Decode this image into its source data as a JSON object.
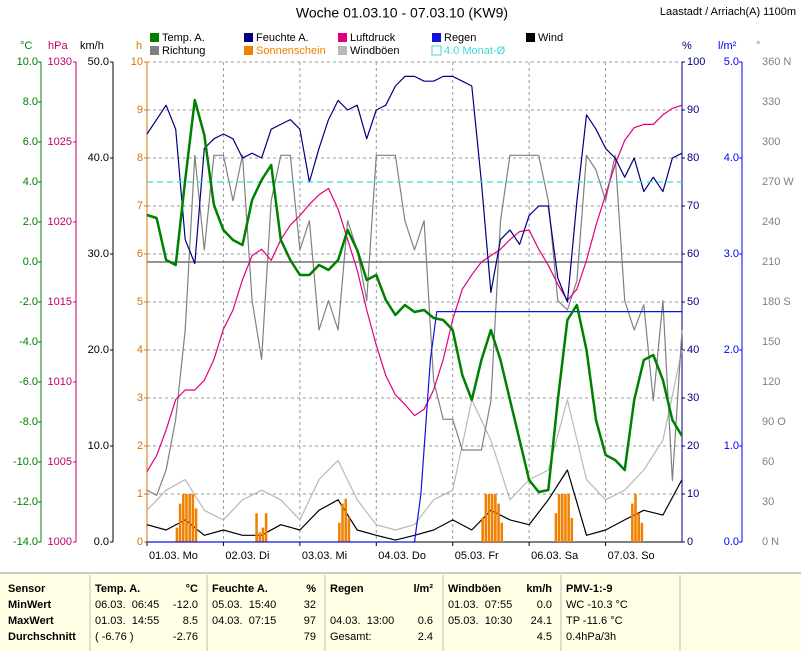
{
  "chart_data": {
    "type": "line",
    "title": "Woche 01.03.10 - 07.03.10 (KW9)",
    "subtitle": "Laastadt / Arriach(A) 1100m",
    "grid": true,
    "xlim": [
      0,
      168
    ],
    "xticks": [
      {
        "value": 0,
        "label": "01.03. Mo"
      },
      {
        "value": 24,
        "label": "02.03. Di"
      },
      {
        "value": 48,
        "label": "03.03. Mi"
      },
      {
        "value": 72,
        "label": "04.03. Do"
      },
      {
        "value": 96,
        "label": "05.03. Fr"
      },
      {
        "value": 120,
        "label": "06.03. Sa"
      },
      {
        "value": 144,
        "label": "07.03. So"
      }
    ],
    "axes": [
      {
        "label": "°C",
        "color": "#008000",
        "lim": [
          -14,
          10
        ],
        "ticks": [
          {
            "value": 10,
            "label": "10.0"
          },
          {
            "value": 8,
            "label": "8.0"
          },
          {
            "value": 6,
            "label": "6.0"
          },
          {
            "value": 4,
            "label": "4.0"
          },
          {
            "value": 2,
            "label": "2.0"
          },
          {
            "value": 0,
            "label": "0.0"
          },
          {
            "value": -2,
            "label": "-2.0"
          },
          {
            "value": -4,
            "label": "-4.0"
          },
          {
            "value": -6,
            "label": "-6.0"
          },
          {
            "value": -8,
            "label": "-8.0"
          },
          {
            "value": -10,
            "label": "-10.0"
          },
          {
            "value": -12,
            "label": "-12.0"
          },
          {
            "value": -14,
            "label": "-14.0"
          }
        ]
      },
      {
        "label": "hPa",
        "color": "#c0006a",
        "lim": [
          1000,
          1030
        ],
        "ticks": [
          1030,
          1025,
          1020,
          1015,
          1010,
          1005,
          1000
        ]
      },
      {
        "label": "km/h",
        "color": "#000000",
        "lim": [
          0,
          50
        ],
        "ticks": [
          {
            "value": 50,
            "label": "50.0"
          },
          {
            "value": 40,
            "label": "40.0"
          },
          {
            "value": 30,
            "label": "30.0"
          },
          {
            "value": 20,
            "label": "20.0"
          },
          {
            "value": 10,
            "label": "10.0"
          },
          {
            "value": 0,
            "label": "0.0"
          }
        ]
      },
      {
        "label": "h",
        "color": "#e07000",
        "lim": [
          0,
          10
        ],
        "ticks": [
          10,
          9,
          8,
          7,
          6,
          5,
          4,
          3,
          2,
          1,
          0
        ]
      },
      {
        "label": "%",
        "color": "#000080",
        "lim": [
          0,
          100
        ],
        "ticks": [
          100,
          90,
          80,
          70,
          60,
          50,
          40,
          30,
          20,
          10,
          0
        ]
      },
      {
        "label": "l/m²",
        "color": "#0000ff",
        "lim": [
          0,
          5
        ],
        "ticks": [
          {
            "value": 5,
            "label": "5.0"
          },
          {
            "value": 4,
            "label": "4.0"
          },
          {
            "value": 3,
            "label": "3.0"
          },
          {
            "value": 2,
            "label": "2.0"
          },
          {
            "value": 1,
            "label": "1.0"
          },
          {
            "value": 0,
            "label": "0.0"
          }
        ]
      },
      {
        "label": "°",
        "color": "#808080",
        "lim": [
          0,
          360
        ],
        "ticks": [
          {
            "value": 360,
            "label": "360 N"
          },
          330,
          300,
          {
            "value": 270,
            "label": "270 W"
          },
          240,
          210,
          {
            "value": 180,
            "label": "180 S"
          },
          150,
          120,
          {
            "value": 90,
            "label": "90 O"
          },
          60,
          30,
          {
            "value": 0,
            "label": "0 N"
          }
        ]
      }
    ],
    "series": [
      {
        "name": "Temp. A.",
        "color": "#008000",
        "type": "line",
        "axis": 0,
        "x": [
          0,
          3,
          6,
          9,
          12,
          15,
          18,
          21,
          24,
          27,
          30,
          33,
          36,
          39,
          42,
          45,
          48,
          51,
          54,
          57,
          60,
          63,
          66,
          69,
          72,
          75,
          78,
          81,
          84,
          87,
          90,
          93,
          96,
          99,
          102,
          105,
          108,
          111,
          114,
          117,
          120,
          123,
          126,
          129,
          132,
          135,
          138,
          141,
          144,
          147,
          150,
          153,
          156,
          159,
          162,
          165,
          168
        ],
        "values": [
          2.35,
          2.2,
          0.1,
          -0.15,
          4.1,
          8.1,
          6.35,
          2.85,
          1.6,
          1.1,
          0.85,
          3.1,
          4.1,
          4.85,
          1.1,
          0.1,
          -0.65,
          -0.65,
          -0.15,
          -0.4,
          0.1,
          1.6,
          0.6,
          -0.9,
          -0.65,
          -1.9,
          -2.65,
          -2.15,
          -2.5,
          -2.4,
          -2.8,
          -2.9,
          -3.4,
          -5.65,
          -6.9,
          -4.9,
          -3.4,
          -4.9,
          -6.9,
          -8.9,
          -10.9,
          -11.5,
          -11.4,
          -6.9,
          -2.9,
          -2.15,
          -4.4,
          -7.9,
          -9.65,
          -9.9,
          -10.4,
          -6.9,
          -4.9,
          -4.65,
          -5.9,
          -7.9,
          -8.7
        ]
      },
      {
        "name": "Richtung",
        "color": "#808080",
        "type": "line",
        "axis": 6,
        "x": [
          0,
          3,
          6,
          9,
          12,
          15,
          18,
          21,
          24,
          27,
          30,
          33,
          36,
          39,
          42,
          45,
          48,
          51,
          54,
          57,
          60,
          63,
          66,
          69,
          72,
          75,
          78,
          81,
          84,
          87,
          90,
          93,
          96,
          99,
          102,
          105,
          108,
          111,
          114,
          117,
          120,
          123,
          126,
          129,
          132,
          135,
          138,
          141,
          144,
          147,
          150,
          153,
          156,
          159,
          162,
          165,
          168
        ],
        "values": [
          39,
          35,
          54,
          92,
          159,
          290,
          219,
          290,
          290,
          256,
          290,
          181,
          137,
          256,
          290,
          290,
          219,
          241,
          159,
          181,
          159,
          241,
          219,
          181,
          290,
          290,
          290,
          241,
          219,
          241,
          121,
          92,
          92,
          69,
          69,
          69,
          106,
          241,
          290,
          290,
          290,
          290,
          256,
          181,
          174,
          196,
          290,
          279,
          256,
          290,
          181,
          159,
          178,
          106,
          181,
          46,
          159
        ]
      },
      {
        "name": "Feuchte A.",
        "color": "#000080",
        "type": "line",
        "axis": 4,
        "x": [
          0,
          3,
          6,
          9,
          12,
          15,
          18,
          21,
          24,
          27,
          30,
          33,
          36,
          39,
          42,
          45,
          48,
          51,
          54,
          57,
          60,
          63,
          66,
          69,
          72,
          75,
          78,
          81,
          84,
          87,
          90,
          93,
          96,
          99,
          102,
          105,
          108,
          111,
          114,
          117,
          120,
          123,
          126,
          129,
          132,
          135,
          138,
          141,
          144,
          147,
          150,
          153,
          156,
          159,
          162,
          165,
          168
        ],
        "values": [
          85,
          88,
          91,
          86,
          63,
          58,
          82,
          84,
          85,
          84,
          80,
          81,
          80,
          86,
          87,
          88,
          86,
          75,
          82,
          88,
          92,
          90,
          91,
          84,
          90,
          91,
          95,
          97,
          97,
          96,
          96,
          97,
          97,
          96,
          95,
          75,
          52,
          63,
          65,
          62,
          68,
          70,
          70,
          55,
          50,
          71,
          89,
          86,
          82,
          80,
          76,
          80,
          73,
          76,
          73,
          80,
          81
        ]
      },
      {
        "name": "Sonnenschein",
        "color": "#f08000",
        "type": "bar",
        "axis": 3,
        "x": [
          9,
          10,
          11,
          12,
          13,
          14,
          15,
          34,
          35,
          36,
          37,
          60,
          61,
          62,
          63,
          105,
          106,
          107,
          108,
          109,
          110,
          111,
          128,
          129,
          130,
          131,
          132,
          133,
          152,
          153,
          154,
          155
        ],
        "values": [
          0.3,
          0.8,
          1,
          1,
          1,
          1,
          0.7,
          0.6,
          0.2,
          0.3,
          0.6,
          0.4,
          0.8,
          0.9,
          0.5,
          0.5,
          1,
          1,
          1,
          1,
          0.8,
          0.4,
          0.6,
          1,
          1,
          1,
          1,
          0.5,
          0.8,
          1,
          0.6,
          0.4
        ]
      },
      {
        "name": "Luftdruck",
        "color": "#e0007f",
        "type": "line",
        "axis": 1,
        "x": [
          0,
          3,
          6,
          9,
          12,
          15,
          18,
          21,
          24,
          27,
          30,
          33,
          36,
          39,
          42,
          45,
          48,
          51,
          54,
          57,
          60,
          63,
          66,
          69,
          72,
          75,
          78,
          81,
          84,
          87,
          90,
          93,
          96,
          99,
          102,
          105,
          108,
          111,
          114,
          117,
          120,
          123,
          126,
          129,
          132,
          135,
          138,
          141,
          144,
          147,
          150,
          153,
          156,
          159,
          162,
          165,
          168
        ],
        "values": [
          1004.4,
          1005.4,
          1007,
          1008.9,
          1009.5,
          1009.5,
          1010.1,
          1011.4,
          1013.3,
          1014.5,
          1016.4,
          1017.9,
          1018.3,
          1017.6,
          1018.9,
          1019.8,
          1020.4,
          1021.1,
          1021.7,
          1022.1,
          1020.8,
          1018.9,
          1017,
          1014.5,
          1012.3,
          1010.4,
          1009.2,
          1008.6,
          1007.9,
          1008.3,
          1009.5,
          1011.4,
          1013.9,
          1015.8,
          1016.7,
          1017.5,
          1017.9,
          1018.3,
          1018.9,
          1019.4,
          1019.5,
          1018.3,
          1017.3,
          1016.1,
          1015.1,
          1015.8,
          1017.6,
          1019.8,
          1021.7,
          1023.6,
          1025.1,
          1025.9,
          1026.1,
          1026.1,
          1026.7,
          1027.1,
          1027.3
        ]
      },
      {
        "name": "Windböen",
        "color": "#b8b8b8",
        "type": "line",
        "axis": 2,
        "x": [
          0,
          6,
          12,
          18,
          24,
          30,
          36,
          42,
          48,
          54,
          60,
          66,
          72,
          78,
          84,
          90,
          96,
          102,
          108,
          114,
          120,
          126,
          132,
          138,
          144,
          150,
          156,
          162,
          168
        ],
        "values": [
          3.3,
          5.4,
          6.5,
          3.3,
          2.3,
          4.4,
          5.4,
          4.4,
          2.3,
          6.5,
          8.5,
          4.4,
          1.8,
          1.25,
          1.8,
          4.4,
          5.4,
          14.8,
          10.6,
          4.4,
          6.5,
          7.5,
          14.8,
          6.5,
          4.4,
          5.4,
          7.5,
          10.6,
          20
        ]
      },
      {
        "name": "Regen",
        "color": "#1010e0",
        "type": "line",
        "axis": 5,
        "x": [
          0,
          84,
          86,
          89,
          91,
          168
        ],
        "values": [
          0,
          0,
          0.5,
          1.9,
          2.4,
          2.4
        ]
      },
      {
        "name": "4.0 Monat-Ø",
        "color": "#40d8d8",
        "type": "hline",
        "axis": 0,
        "values": [
          4.0
        ]
      },
      {
        "name": "Wind",
        "color": "#000000",
        "type": "line",
        "axis": 2,
        "x": [
          0,
          6,
          12,
          18,
          24,
          30,
          36,
          42,
          48,
          54,
          60,
          66,
          72,
          78,
          84,
          90,
          96,
          102,
          108,
          114,
          120,
          126,
          132,
          138,
          144,
          150,
          156,
          162,
          168
        ],
        "values": [
          1.8,
          1.25,
          2.3,
          0.7,
          1.25,
          0.7,
          0.7,
          1.8,
          1.25,
          3.3,
          4.4,
          1.25,
          0.7,
          0.2,
          0.7,
          1.25,
          2.3,
          1.25,
          3.3,
          2.3,
          1.8,
          4.4,
          7.5,
          0.7,
          1.25,
          2.3,
          3.3,
          2.8,
          6.5
        ]
      }
    ]
  },
  "table": {
    "header": [
      "Sensor",
      "Temp. A.",
      "°C",
      "Feuchte A.",
      "%",
      "Regen",
      "l/m²",
      "Windböen",
      "km/h",
      "PMV-1:-9"
    ],
    "rows": [
      [
        "MinWert",
        "06.03.  06:45",
        "-12.0",
        "05.03.  15:40",
        "32",
        null,
        null,
        "01.03.  07:55",
        "0.0",
        "WC -10.3 °C"
      ],
      [
        "MaxWert",
        "01.03.  14:55",
        "8.5",
        "04.03.  07:15",
        "97",
        "04.03.  13:00",
        "0.6",
        "05.03.  10:30",
        "24.1",
        "TP -11.6 °C"
      ],
      [
        "Durchschnitt",
        "( -6.76 )",
        "-2.76",
        null,
        "79",
        "Gesamt:",
        "2.4",
        null,
        "4.5",
        "0.4hPa/3h"
      ]
    ]
  }
}
